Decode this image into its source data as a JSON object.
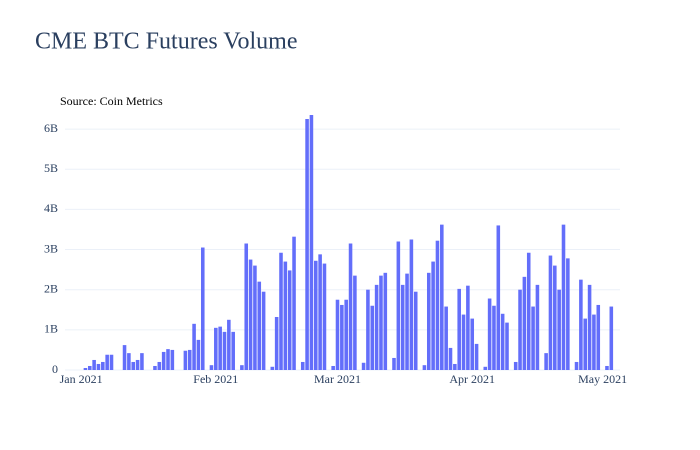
{
  "chart_data": {
    "type": "bar",
    "title": "CME BTC Futures Volume",
    "subtitle": "Source: Coin Metrics",
    "color": "#636efa",
    "x": [
      1,
      2,
      3,
      4,
      5,
      6,
      7,
      10,
      11,
      12,
      13,
      14,
      17,
      18,
      19,
      20,
      21,
      24,
      25,
      26,
      27,
      28,
      30,
      31,
      32,
      33,
      34,
      35,
      37,
      38,
      39,
      40,
      41,
      42,
      44,
      45,
      46,
      47,
      48,
      49,
      51,
      52,
      53,
      54,
      55,
      56,
      58,
      59,
      60,
      61,
      62,
      63,
      65,
      66,
      67,
      68,
      69,
      70,
      72,
      73,
      74,
      75,
      76,
      77,
      79,
      80,
      81,
      82,
      83,
      84,
      85,
      86,
      87,
      88,
      89,
      90,
      91,
      93,
      94,
      95,
      96,
      97,
      98,
      100,
      101,
      102,
      103,
      104,
      105,
      107,
      108,
      109,
      110,
      111,
      112,
      114,
      115,
      116,
      117,
      118,
      119,
      121,
      122
    ],
    "values": [
      0.05,
      0.1,
      0.25,
      0.15,
      0.2,
      0.38,
      0.38,
      0.62,
      0.42,
      0.2,
      0.25,
      0.42,
      0.1,
      0.2,
      0.45,
      0.52,
      0.5,
      0.48,
      0.5,
      1.15,
      0.75,
      3.05,
      0.12,
      1.05,
      1.08,
      0.95,
      1.25,
      0.95,
      0.12,
      3.15,
      2.75,
      2.6,
      2.2,
      1.95,
      0.08,
      1.32,
      2.92,
      2.7,
      2.48,
      3.32,
      0.2,
      6.25,
      6.35,
      2.72,
      2.88,
      2.65,
      0.1,
      1.75,
      1.62,
      1.75,
      3.15,
      2.35,
      0.18,
      2.0,
      1.6,
      2.12,
      2.35,
      2.42,
      0.3,
      3.2,
      2.12,
      2.4,
      3.25,
      1.95,
      0.12,
      2.42,
      2.7,
      3.22,
      3.62,
      1.58,
      0.55,
      0.15,
      2.02,
      1.38,
      2.1,
      1.28,
      0.65,
      0.08,
      1.78,
      1.6,
      3.6,
      1.4,
      1.18,
      0.2,
      2.0,
      2.32,
      2.92,
      1.58,
      2.12,
      0.42,
      2.85,
      2.6,
      2.0,
      3.62,
      2.78,
      0.2,
      2.25,
      1.28,
      2.12,
      1.38,
      1.62,
      0.1,
      1.58
    ],
    "xlim": [
      -3.7,
      124
    ],
    "xticks": [
      {
        "value": 0,
        "label": "Jan 2021"
      },
      {
        "value": 31,
        "label": "Feb 2021"
      },
      {
        "value": 59,
        "label": "Mar 2021"
      },
      {
        "value": 90,
        "label": "Apr 2021"
      },
      {
        "value": 120,
        "label": "May 2021"
      }
    ],
    "ylim": [
      0,
      6.4
    ],
    "yticks": [
      0,
      {
        "value": 1,
        "label": "1B"
      },
      {
        "value": 2,
        "label": "2B"
      },
      {
        "value": 3,
        "label": "3B"
      },
      {
        "value": 4,
        "label": "4B"
      },
      {
        "value": 5,
        "label": "5B"
      },
      {
        "value": 6,
        "label": "6B"
      }
    ],
    "grid": true
  }
}
